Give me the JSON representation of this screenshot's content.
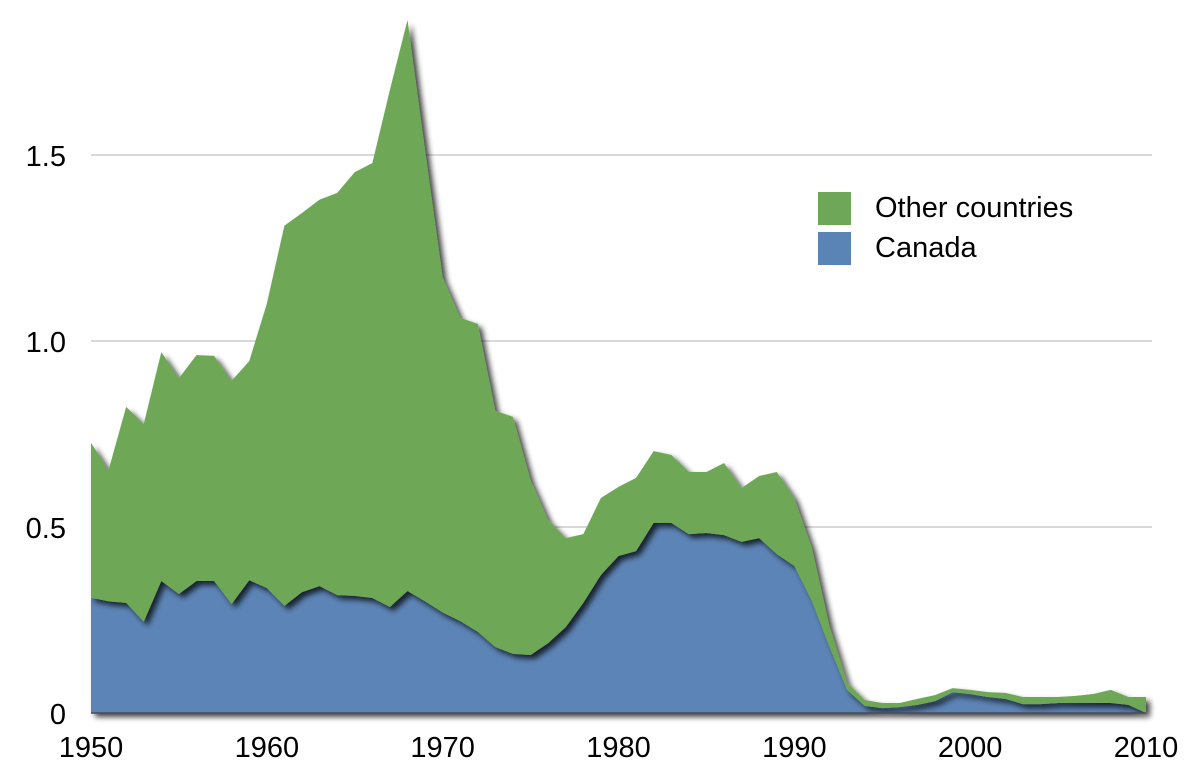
{
  "chart_data": {
    "type": "area",
    "stacked": true,
    "title": "",
    "xlabel": "",
    "ylabel": "",
    "xlim": [
      1950,
      2010
    ],
    "ylim": [
      0,
      1.9
    ],
    "grid": true,
    "legend_position": "upper-right (inside plot)",
    "x_ticks": [
      1950,
      1960,
      1970,
      1980,
      1990,
      2000,
      2010
    ],
    "x_tick_labels": [
      "1950",
      "1960",
      "1970",
      "1980",
      "1990",
      "2000",
      "2010"
    ],
    "y_ticks": [
      0,
      0.5,
      1.0,
      1.5
    ],
    "y_tick_labels": [
      "0",
      "0.5",
      "1.0",
      "1.5"
    ],
    "x": [
      1950,
      1951,
      1952,
      1953,
      1954,
      1955,
      1956,
      1957,
      1958,
      1959,
      1960,
      1961,
      1962,
      1963,
      1964,
      1965,
      1966,
      1967,
      1968,
      1969,
      1970,
      1971,
      1972,
      1973,
      1974,
      1975,
      1976,
      1977,
      1978,
      1979,
      1980,
      1981,
      1982,
      1983,
      1984,
      1985,
      1986,
      1987,
      1988,
      1989,
      1990,
      1991,
      1992,
      1993,
      1994,
      1995,
      1996,
      1997,
      1998,
      1999,
      2000,
      2001,
      2002,
      2003,
      2004,
      2005,
      2006,
      2007,
      2008,
      2009,
      2010
    ],
    "series": [
      {
        "name": "Canada",
        "color": "#5b84b6",
        "values": [
          0.31,
          0.3,
          0.296,
          0.245,
          0.355,
          0.32,
          0.355,
          0.355,
          0.293,
          0.357,
          0.336,
          0.288,
          0.325,
          0.341,
          0.317,
          0.315,
          0.309,
          0.285,
          0.328,
          0.3,
          0.27,
          0.247,
          0.218,
          0.177,
          0.159,
          0.156,
          0.188,
          0.231,
          0.296,
          0.371,
          0.422,
          0.435,
          0.511,
          0.511,
          0.481,
          0.484,
          0.478,
          0.46,
          0.47,
          0.427,
          0.395,
          0.3,
          0.177,
          0.062,
          0.019,
          0.013,
          0.016,
          0.022,
          0.032,
          0.056,
          0.051,
          0.043,
          0.038,
          0.024,
          0.024,
          0.027,
          0.027,
          0.027,
          0.027,
          0.022,
          0.0
        ]
      },
      {
        "name": "Other countries",
        "color": "#6ea757",
        "values": [
          0.416,
          0.353,
          0.527,
          0.532,
          0.615,
          0.58,
          0.607,
          0.605,
          0.6,
          0.589,
          0.764,
          1.022,
          1.019,
          1.039,
          1.081,
          1.139,
          1.169,
          1.39,
          1.535,
          1.213,
          0.902,
          0.815,
          0.828,
          0.635,
          0.637,
          0.47,
          0.331,
          0.239,
          0.185,
          0.207,
          0.186,
          0.197,
          0.193,
          0.183,
          0.167,
          0.164,
          0.194,
          0.145,
          0.167,
          0.221,
          0.183,
          0.144,
          0.057,
          0.019,
          0.016,
          0.014,
          0.011,
          0.016,
          0.016,
          0.011,
          0.011,
          0.013,
          0.016,
          0.019,
          0.019,
          0.016,
          0.019,
          0.024,
          0.035,
          0.021,
          0.043
        ]
      }
    ]
  },
  "legend": {
    "items": [
      {
        "label": "Other countries",
        "color": "#6ea757"
      },
      {
        "label": "Canada",
        "color": "#5b84b6"
      }
    ]
  },
  "style": {
    "gridline_color": "#b3b3b3",
    "baseline_color": "#4a4a5a",
    "background": "#ffffff"
  }
}
